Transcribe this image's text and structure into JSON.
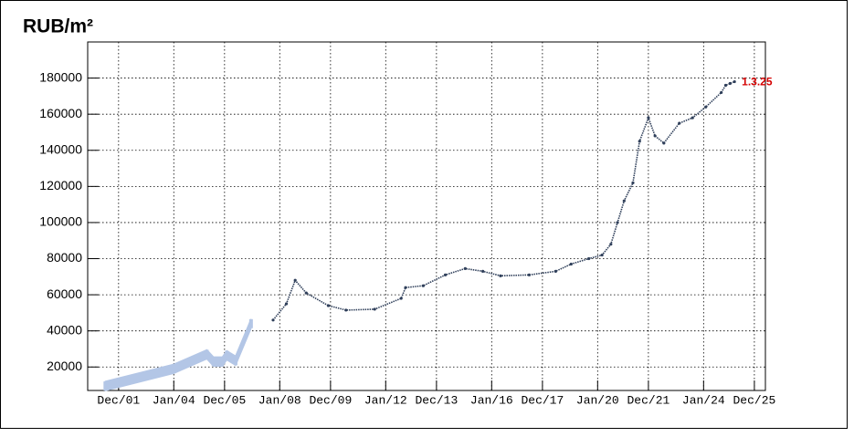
{
  "chart_data": {
    "type": "line",
    "title": "RUB/m²",
    "annotation": {
      "text": "1.3.25",
      "color": "#d40000"
    },
    "xlim": [
      "2000-10",
      "2026-05"
    ],
    "ylim": [
      7000,
      200000
    ],
    "xticks": [
      {
        "value": "2001-12",
        "label": "Dec/01"
      },
      {
        "value": "2004-01",
        "label": "Jan/04"
      },
      {
        "value": "2005-12",
        "label": "Dec/05"
      },
      {
        "value": "2008-01",
        "label": "Jan/08"
      },
      {
        "value": "2009-12",
        "label": "Dec/09"
      },
      {
        "value": "2012-01",
        "label": "Jan/12"
      },
      {
        "value": "2013-12",
        "label": "Dec/13"
      },
      {
        "value": "2016-01",
        "label": "Jan/16"
      },
      {
        "value": "2017-12",
        "label": "Dec/17"
      },
      {
        "value": "2020-01",
        "label": "Jan/20"
      },
      {
        "value": "2021-12",
        "label": "Dec/21"
      },
      {
        "value": "2024-01",
        "label": "Jan/24"
      },
      {
        "value": "2025-12",
        "label": "Dec/25"
      }
    ],
    "yticks": [
      20000,
      40000,
      60000,
      80000,
      100000,
      120000,
      140000,
      160000,
      180000
    ],
    "grid": true,
    "series": [
      {
        "color": "#b3c6e6",
        "x": [
          "2001-06",
          "2004-01",
          "2005-04",
          "2005-07",
          "2005-11",
          "2006-01",
          "2006-05",
          "2006-12"
        ],
        "values": [
          9500,
          19000,
          27000,
          23000,
          23000,
          26500,
          23500,
          44000
        ],
        "errors": [
          2500,
          2500,
          2500,
          2500,
          2500,
          2500,
          2500,
          2500
        ]
      },
      {
        "color": "#2f3f5a",
        "x": [
          "2007-10",
          "2008-04",
          "2008-08",
          "2009-01",
          "2009-11",
          "2010-07",
          "2011-08",
          "2012-08",
          "2012-10",
          "2013-06",
          "2014-04",
          "2015-01",
          "2015-09",
          "2016-05",
          "2017-06",
          "2018-06",
          "2019-01",
          "2019-09",
          "2020-03",
          "2020-07",
          "2020-10",
          "2021-01",
          "2021-05",
          "2021-08",
          "2021-12",
          "2022-03",
          "2022-07",
          "2023-02",
          "2023-08",
          "2024-02",
          "2024-09",
          "2024-11",
          "2025-01",
          "2025-03"
        ],
        "values": [
          46000,
          55000,
          68000,
          61000,
          54000,
          51500,
          52000,
          58000,
          64000,
          65000,
          71000,
          74500,
          73000,
          70500,
          71000,
          73000,
          77000,
          80000,
          82000,
          88000,
          100000,
          112000,
          122000,
          145000,
          158000,
          148000,
          144000,
          155000,
          158000,
          164000,
          172000,
          176000,
          177000,
          178000
        ]
      }
    ]
  }
}
